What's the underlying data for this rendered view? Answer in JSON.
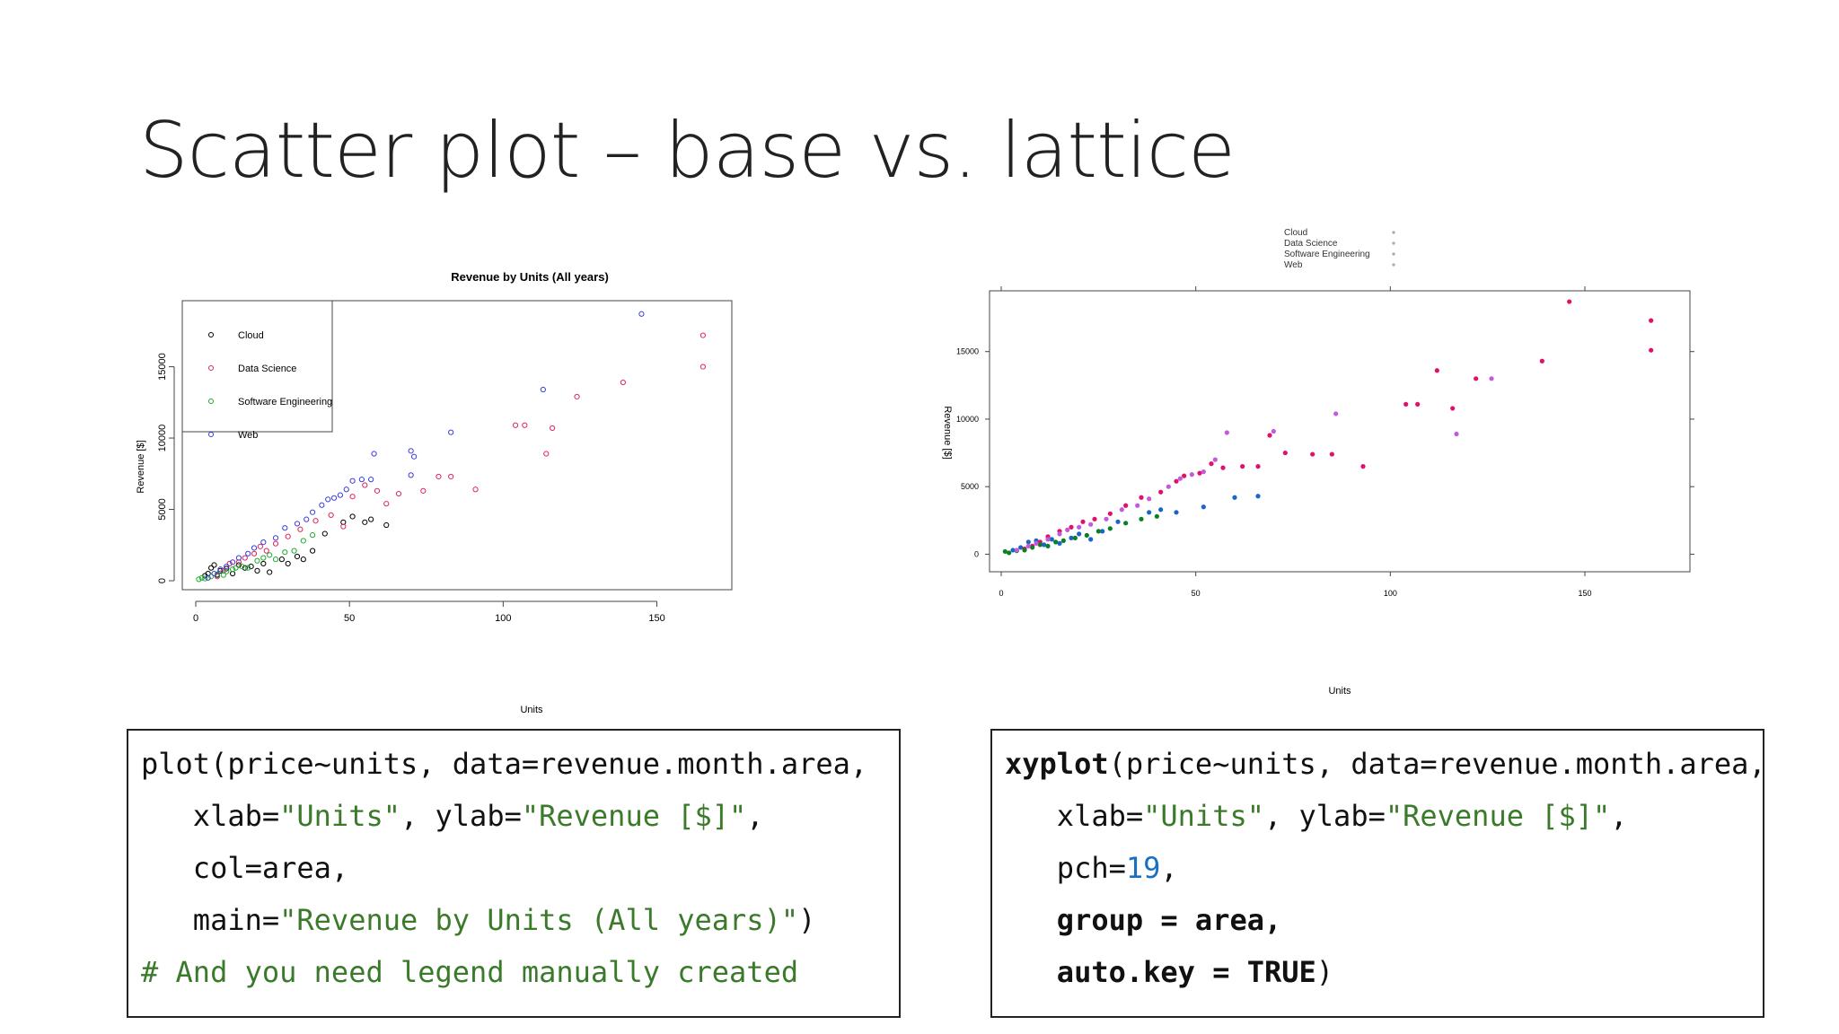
{
  "slide": {
    "title": "Scatter plot – base vs. lattice"
  },
  "colors": {
    "Cloud": "#000000",
    "Data Science": "#e0245e",
    "Software Engineering": "#1faa2f",
    "Web": "#3b3bdc",
    "lattice": {
      "Cloud": "#1a66c8",
      "Data Science": "#e0106b",
      "Software Engineering": "#0a7f23",
      "Web": "#c25ae0"
    }
  },
  "chart_data": [
    {
      "type": "scatter",
      "title": "Revenue by Units (All years)",
      "xlabel": "Units",
      "ylabel": "Revenue [$]",
      "xlim": [
        0,
        170
      ],
      "ylim": [
        0,
        19000
      ],
      "xticks": [
        "0",
        "50",
        "100",
        "150"
      ],
      "yticks": [
        "0",
        "5000",
        "10000",
        "15000"
      ],
      "legend": {
        "placement": "top-left",
        "entries": [
          "Cloud",
          "Data Science",
          "Software Engineering",
          "Web"
        ]
      },
      "marker": "open-circle",
      "series": [
        {
          "name": "Cloud",
          "points": [
            [
              3,
              350
            ],
            [
              4,
              500
            ],
            [
              5,
              900
            ],
            [
              6,
              1100
            ],
            [
              7,
              400
            ],
            [
              8,
              700
            ],
            [
              10,
              850
            ],
            [
              12,
              500
            ],
            [
              14,
              1100
            ],
            [
              16,
              900
            ],
            [
              18,
              1000
            ],
            [
              20,
              700
            ],
            [
              22,
              1200
            ],
            [
              24,
              600
            ],
            [
              28,
              1500
            ],
            [
              30,
              1200
            ],
            [
              33,
              1700
            ],
            [
              35,
              1500
            ],
            [
              38,
              2100
            ],
            [
              42,
              3300
            ],
            [
              48,
              4100
            ],
            [
              51,
              4500
            ],
            [
              55,
              4100
            ],
            [
              57,
              4300
            ],
            [
              62,
              3900
            ]
          ]
        },
        {
          "name": "Data Science",
          "points": [
            [
              7,
              300
            ],
            [
              9,
              700
            ],
            [
              11,
              1200
            ],
            [
              14,
              1300
            ],
            [
              16,
              1600
            ],
            [
              19,
              1900
            ],
            [
              21,
              2400
            ],
            [
              23,
              2100
            ],
            [
              26,
              2600
            ],
            [
              30,
              3100
            ],
            [
              34,
              3600
            ],
            [
              39,
              4200
            ],
            [
              44,
              4600
            ],
            [
              48,
              3800
            ],
            [
              51,
              5900
            ],
            [
              55,
              6700
            ],
            [
              59,
              6300
            ],
            [
              62,
              5400
            ],
            [
              66,
              6100
            ],
            [
              74,
              6300
            ],
            [
              79,
              7300
            ],
            [
              83,
              7300
            ],
            [
              91,
              6400
            ],
            [
              104,
              10900
            ],
            [
              107,
              10900
            ],
            [
              114,
              8900
            ],
            [
              116,
              10700
            ],
            [
              124,
              12900
            ],
            [
              139,
              13900
            ],
            [
              165,
              15000
            ],
            [
              165,
              17200
            ]
          ]
        },
        {
          "name": "Software Engineering",
          "points": [
            [
              1,
              100
            ],
            [
              2,
              200
            ],
            [
              3,
              150
            ],
            [
              5,
              300
            ],
            [
              7,
              450
            ],
            [
              9,
              400
            ],
            [
              10,
              650
            ],
            [
              12,
              800
            ],
            [
              13,
              900
            ],
            [
              15,
              1000
            ],
            [
              17,
              900
            ],
            [
              20,
              1400
            ],
            [
              22,
              1600
            ],
            [
              24,
              1800
            ],
            [
              26,
              1500
            ],
            [
              29,
              2000
            ],
            [
              32,
              2100
            ],
            [
              35,
              2800
            ],
            [
              38,
              3200
            ]
          ]
        },
        {
          "name": "Web",
          "points": [
            [
              4,
              200
            ],
            [
              6,
              500
            ],
            [
              8,
              800
            ],
            [
              10,
              1000
            ],
            [
              12,
              1300
            ],
            [
              14,
              1600
            ],
            [
              17,
              1900
            ],
            [
              19,
              2300
            ],
            [
              22,
              2700
            ],
            [
              26,
              3000
            ],
            [
              29,
              3700
            ],
            [
              33,
              4000
            ],
            [
              36,
              4300
            ],
            [
              38,
              4800
            ],
            [
              41,
              5300
            ],
            [
              43,
              5700
            ],
            [
              45,
              5800
            ],
            [
              47,
              6000
            ],
            [
              49,
              6400
            ],
            [
              51,
              7000
            ],
            [
              54,
              7100
            ],
            [
              57,
              7100
            ],
            [
              58,
              8900
            ],
            [
              70,
              9100
            ],
            [
              71,
              8700
            ],
            [
              70,
              7400
            ],
            [
              83,
              10400
            ],
            [
              113,
              13400
            ],
            [
              145,
              18700
            ]
          ]
        }
      ]
    },
    {
      "type": "scatter",
      "title": "",
      "xlabel": "Units",
      "ylabel": "Revenue [$]",
      "xlim": [
        -3,
        177
      ],
      "ylim": [
        -1300,
        19500
      ],
      "xticks": [
        "0",
        "50",
        "100",
        "150"
      ],
      "yticks": [
        "0",
        "5000",
        "10000",
        "15000"
      ],
      "legend": {
        "placement": "top",
        "entries": [
          "Cloud",
          "Data Science",
          "Software Engineering",
          "Web"
        ]
      },
      "marker": "filled-dot",
      "series": [
        {
          "name": "Cloud",
          "points": [
            [
              3,
              300
            ],
            [
              5,
              500
            ],
            [
              7,
              900
            ],
            [
              9,
              1000
            ],
            [
              11,
              700
            ],
            [
              13,
              1100
            ],
            [
              15,
              800
            ],
            [
              18,
              1200
            ],
            [
              20,
              1500
            ],
            [
              23,
              1100
            ],
            [
              26,
              1700
            ],
            [
              30,
              2400
            ],
            [
              38,
              3100
            ],
            [
              41,
              3300
            ],
            [
              45,
              3100
            ],
            [
              52,
              3500
            ],
            [
              60,
              4200
            ],
            [
              66,
              4300
            ]
          ]
        },
        {
          "name": "Data Science",
          "points": [
            [
              6,
              400
            ],
            [
              8,
              600
            ],
            [
              10,
              900
            ],
            [
              12,
              1300
            ],
            [
              15,
              1700
            ],
            [
              18,
              2000
            ],
            [
              21,
              2400
            ],
            [
              24,
              2600
            ],
            [
              28,
              3000
            ],
            [
              32,
              3600
            ],
            [
              36,
              4200
            ],
            [
              41,
              4600
            ],
            [
              45,
              5400
            ],
            [
              47,
              5800
            ],
            [
              51,
              6000
            ],
            [
              54,
              6700
            ],
            [
              57,
              6400
            ],
            [
              62,
              6500
            ],
            [
              66,
              6500
            ],
            [
              69,
              8800
            ],
            [
              73,
              7500
            ],
            [
              80,
              7400
            ],
            [
              85,
              7400
            ],
            [
              93,
              6500
            ],
            [
              104,
              11100
            ],
            [
              107,
              11100
            ],
            [
              112,
              13600
            ],
            [
              116,
              10800
            ],
            [
              122,
              13000
            ],
            [
              139,
              14300
            ],
            [
              146,
              18700
            ],
            [
              167,
              15100
            ],
            [
              167,
              17300
            ]
          ]
        },
        {
          "name": "Software Engineering",
          "points": [
            [
              1,
              200
            ],
            [
              2,
              100
            ],
            [
              4,
              250
            ],
            [
              6,
              300
            ],
            [
              8,
              500
            ],
            [
              10,
              700
            ],
            [
              12,
              600
            ],
            [
              14,
              900
            ],
            [
              16,
              1000
            ],
            [
              19,
              1200
            ],
            [
              22,
              1400
            ],
            [
              25,
              1700
            ],
            [
              28,
              1900
            ],
            [
              32,
              2300
            ],
            [
              36,
              2600
            ],
            [
              40,
              2800
            ]
          ]
        },
        {
          "name": "Web",
          "points": [
            [
              4,
              300
            ],
            [
              7,
              600
            ],
            [
              9,
              800
            ],
            [
              12,
              1100
            ],
            [
              15,
              1500
            ],
            [
              17,
              1800
            ],
            [
              20,
              2000
            ],
            [
              23,
              2200
            ],
            [
              27,
              2600
            ],
            [
              31,
              3300
            ],
            [
              35,
              3600
            ],
            [
              38,
              4100
            ],
            [
              43,
              5000
            ],
            [
              46,
              5600
            ],
            [
              49,
              5900
            ],
            [
              52,
              6100
            ],
            [
              55,
              7000
            ],
            [
              58,
              9000
            ],
            [
              70,
              9100
            ],
            [
              86,
              10400
            ],
            [
              117,
              8900
            ],
            [
              126,
              13000
            ]
          ]
        }
      ]
    }
  ],
  "code_left": {
    "l1": "plot(price~units, data=revenue.month.area,",
    "l2a": "   xlab=",
    "l2b": "\"Units\"",
    "l2c": ", ylab=",
    "l2d": "\"Revenue [$]\"",
    "l2e": ",",
    "l3": "   col=area,",
    "l4a": "   main=",
    "l4b": "\"Revenue by Units (All years)\"",
    "l4c": ")",
    "l5": "# And you need legend manually created"
  },
  "code_right": {
    "l1a": "xyplot",
    "l1b": "(price~units, data=revenue.month.area,",
    "l2a": "   xlab=",
    "l2b": "\"Units\"",
    "l2c": ", ylab=",
    "l2d": "\"Revenue [$]\"",
    "l2e": ",",
    "l3a": "   pch=",
    "l3b": "19",
    "l3c": ",",
    "l4": "   group = area,",
    "l5a": "   auto.key = TRUE",
    "l5b": ")"
  }
}
